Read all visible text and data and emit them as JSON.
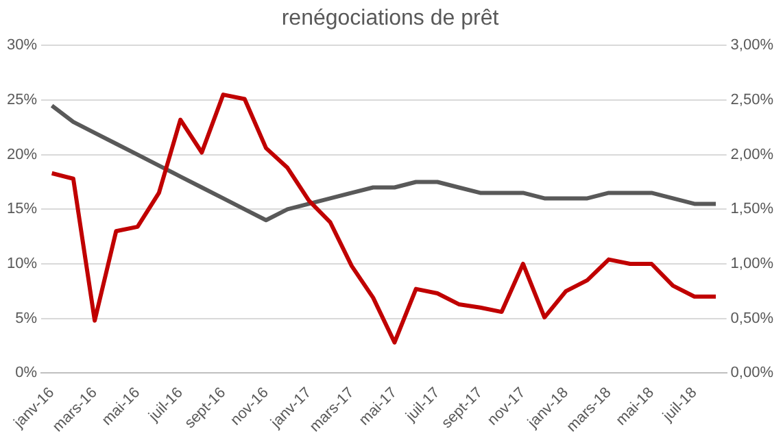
{
  "chart_data": {
    "type": "line",
    "title": "renégociations de prêt",
    "categories": [
      "janv-16",
      null,
      "mars-16",
      null,
      "mai-16",
      null,
      "juil-16",
      null,
      "sept-16",
      null,
      "nov-16",
      null,
      "janv-17",
      null,
      "mars-17",
      null,
      "mai-17",
      null,
      "juil-17",
      null,
      "sept-17",
      null,
      "nov-17",
      null,
      "janv-18",
      null,
      "mars-18",
      null,
      "mai-18",
      null,
      "juil-18",
      null
    ],
    "series": [
      {
        "color": "#c00000",
        "values": [
          18.3,
          17.8,
          4.8,
          13,
          13.4,
          16.5,
          23.2,
          20.2,
          25.5,
          25.1,
          20.6,
          18.8,
          15.8,
          13.8,
          9.8,
          6.9,
          2.8,
          7.7,
          7.3,
          6.3,
          6,
          5.6,
          10,
          5.1,
          7.5,
          8.5,
          10.4,
          10,
          10,
          8,
          7,
          7
        ]
      },
      {
        "color": "#595959",
        "axis": "y2",
        "values": [
          2.45,
          2.3,
          2.2,
          2.1,
          2,
          1.9,
          1.8,
          1.7,
          1.6,
          1.5,
          1.4,
          1.5,
          1.55,
          1.6,
          1.65,
          1.7,
          1.7,
          1.75,
          1.75,
          1.7,
          1.65,
          1.65,
          1.65,
          1.6,
          1.6,
          1.6,
          1.65,
          1.65,
          1.65,
          1.6,
          1.55,
          1.55
        ]
      }
    ],
    "ylim": [
      0,
      30
    ],
    "yticks": [
      {
        "value": 0,
        "label": "0%"
      },
      {
        "value": 5,
        "label": "5%"
      },
      {
        "value": 10,
        "label": "10%"
      },
      {
        "value": 15,
        "label": "15%"
      },
      {
        "value": 20,
        "label": "20%"
      },
      {
        "value": 25,
        "label": "25%"
      },
      {
        "value": 30,
        "label": "30%"
      }
    ],
    "y2lim": [
      0,
      3
    ],
    "y2ticks": [
      {
        "value": 0,
        "label": "0,00%"
      },
      {
        "value": 0.5,
        "label": "0,50%"
      },
      {
        "value": 1,
        "label": "1,00%"
      },
      {
        "value": 1.5,
        "label": "1,50%"
      },
      {
        "value": 2,
        "label": "2,00%"
      },
      {
        "value": 2.5,
        "label": "2,50%"
      },
      {
        "value": 3,
        "label": "3,00%"
      }
    ],
    "grid": "y",
    "line_style": "solid"
  }
}
